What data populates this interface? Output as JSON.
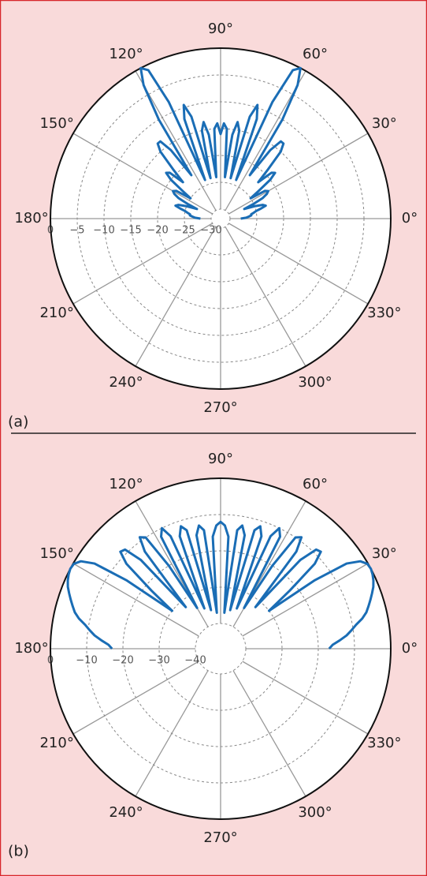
{
  "chart_data": [
    {
      "type": "polar",
      "panel_label": "(a)",
      "color": "#1a6db5",
      "x": [
        0,
        2,
        4,
        6,
        8,
        10,
        12,
        14,
        16,
        18,
        20,
        22,
        24,
        26,
        28,
        30,
        32,
        34,
        36,
        38,
        40,
        42,
        44,
        46,
        48,
        50,
        52,
        54,
        56,
        58,
        60,
        62,
        64,
        66,
        68,
        70,
        72,
        74,
        76,
        78,
        80,
        82,
        84,
        86,
        88,
        90,
        92,
        94,
        96,
        98,
        100,
        102,
        104,
        106,
        108,
        110,
        112,
        114,
        116,
        118,
        120,
        122,
        124,
        126,
        128,
        130,
        132,
        134,
        136,
        138,
        140,
        142,
        144,
        146,
        148,
        150,
        152,
        154,
        156,
        158,
        160,
        162,
        164,
        166,
        168,
        170,
        172,
        174,
        176,
        178,
        180
      ],
      "values": [
        -28,
        -27,
        -26.5,
        -26,
        -26,
        -25.5,
        -25,
        -24,
        -23,
        -23.5,
        -25,
        -27,
        -25,
        -23,
        -22,
        -21.5,
        -22,
        -25,
        -23,
        -20,
        -18.5,
        -19,
        -22,
        -19,
        -15,
        -13.5,
        -13.5,
        -16,
        -22,
        -10,
        -3,
        0,
        -1,
        -8,
        -24,
        -12,
        -9.5,
        -12,
        -24,
        -15,
        -13.5,
        -16,
        -24,
        -15,
        -14,
        -16,
        -14,
        -15,
        -24,
        -16,
        -13.5,
        -15,
        -24,
        -12,
        -9.5,
        -12,
        -24,
        -8,
        -1,
        0,
        -3,
        -10,
        -22,
        -16,
        -13.5,
        -13.5,
        -15,
        -19,
        -22,
        -19,
        -18.5,
        -20,
        -23,
        -25,
        -22,
        -21.5,
        -22,
        -23,
        -25,
        -27,
        -25,
        -23.5,
        -23,
        -24,
        -25,
        -25.5,
        -26,
        -26,
        -26.5,
        -27,
        -28
      ],
      "rlim": [
        -30,
        0
      ],
      "rticks": [
        0,
        {
          "value": -5,
          "label": "−5"
        },
        {
          "value": -10,
          "label": "−10"
        },
        {
          "value": -15,
          "label": "−15"
        },
        {
          "value": -20,
          "label": "−20"
        },
        {
          "value": -25,
          "label": "−25"
        },
        {
          "value": -30,
          "label": "−30"
        }
      ],
      "thetaticks": [
        {
          "value": 0,
          "label": "0°"
        },
        {
          "value": 30,
          "label": "30°"
        },
        {
          "value": 60,
          "label": "60°"
        },
        {
          "value": 90,
          "label": "90°"
        },
        {
          "value": 120,
          "label": "120°"
        },
        {
          "value": 150,
          "label": "150°"
        },
        {
          "value": 180,
          "label": "180°"
        },
        {
          "value": 210,
          "label": "210°"
        },
        {
          "value": 240,
          "label": "240°"
        },
        {
          "value": 270,
          "label": "270°"
        },
        {
          "value": 300,
          "label": "300°"
        },
        {
          "value": 330,
          "label": "330°"
        }
      ]
    },
    {
      "type": "polar",
      "panel_label": "(b)",
      "color": "#1a6db5",
      "x": [
        0,
        2,
        4,
        6,
        8,
        10,
        12,
        14,
        16,
        18,
        20,
        22,
        24,
        26,
        28,
        30,
        32,
        34,
        36,
        38,
        40,
        42,
        44,
        46,
        48,
        50,
        52,
        54,
        56,
        58,
        60,
        62,
        64,
        66,
        68,
        70,
        72,
        74,
        76,
        78,
        80,
        82,
        84,
        86,
        88,
        90,
        92,
        94,
        96,
        98,
        100,
        102,
        104,
        106,
        108,
        110,
        112,
        114,
        116,
        118,
        120,
        122,
        124,
        126,
        128,
        130,
        132,
        134,
        136,
        138,
        140,
        142,
        144,
        146,
        148,
        150,
        152,
        154,
        156,
        158,
        160,
        162,
        164,
        166,
        168,
        170,
        172,
        174,
        176,
        178,
        180
      ],
      "values": [
        -17,
        -16,
        -14,
        -12,
        -10.5,
        -9,
        -7,
        -5.5,
        -4.5,
        -3.5,
        -2.5,
        -1.5,
        -0.8,
        -0.3,
        0,
        -0.2,
        -1.5,
        -5,
        -15,
        -30,
        -22,
        -12,
        -8.5,
        -9,
        -14,
        -32,
        -13,
        -9,
        -10,
        -20,
        -34,
        -12,
        -10,
        -13,
        -35,
        -14,
        -11.5,
        -13,
        -36,
        -15,
        -12.5,
        -14,
        -37,
        -16,
        -13,
        -12,
        -13,
        -16,
        -37,
        -14,
        -12.5,
        -15,
        -36,
        -13,
        -11.5,
        -14,
        -35,
        -13,
        -10,
        -12,
        -34,
        -20,
        -10,
        -9,
        -13,
        -32,
        -14,
        -9,
        -8.5,
        -12,
        -22,
        -30,
        -15,
        -5,
        -1.5,
        -0.2,
        0,
        -0.3,
        -0.8,
        -1.5,
        -2.5,
        -3.5,
        -4.5,
        -5.5,
        -7,
        -9,
        -10.5,
        -12,
        -14,
        -16,
        -17
      ],
      "rlim": [
        -40,
        0
      ],
      "rticks": [
        0,
        {
          "value": -10,
          "label": "−10"
        },
        {
          "value": -20,
          "label": "−20"
        },
        {
          "value": -30,
          "label": "−30"
        },
        {
          "value": -40,
          "label": "−40"
        }
      ],
      "thetaticks": [
        {
          "value": 0,
          "label": "0°"
        },
        {
          "value": 30,
          "label": "30°"
        },
        {
          "value": 60,
          "label": "60°"
        },
        {
          "value": 90,
          "label": "90°"
        },
        {
          "value": 120,
          "label": "120°"
        },
        {
          "value": 150,
          "label": "150°"
        },
        {
          "value": 180,
          "label": "180°"
        },
        {
          "value": 210,
          "label": "210°"
        },
        {
          "value": 240,
          "label": "240°"
        },
        {
          "value": 270,
          "label": "270°"
        },
        {
          "value": 300,
          "label": "300°"
        },
        {
          "value": 330,
          "label": "330°"
        }
      ]
    }
  ]
}
